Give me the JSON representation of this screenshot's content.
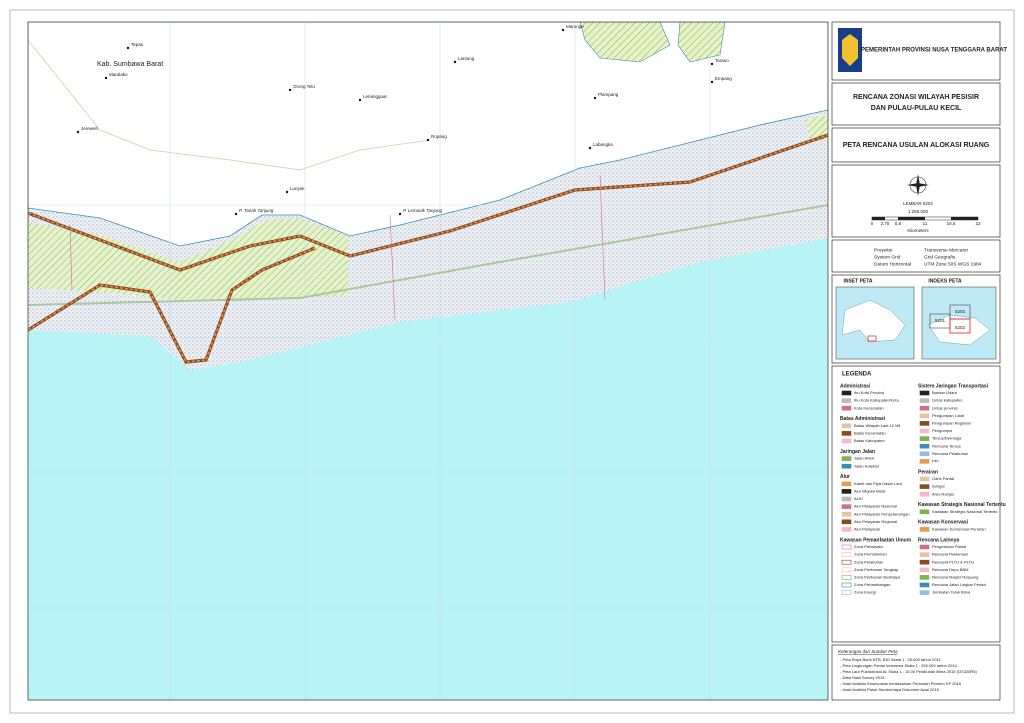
{
  "header": {
    "agency": "PEMERINTAH PROVINSI NUSA TENGGARA BARAT",
    "title_lines": [
      "RENCANA ZONASI WILAYAH PESISIR",
      "DAN PULAU-PULAU KECIL"
    ],
    "map_title": "PETA RENCANA USULAN ALOKASI RUANG"
  },
  "places": [
    "Tepas",
    "Kab. Sumbawa Barat",
    "Maralako",
    "Orong Telu",
    "Lenangguar",
    "Lantung",
    "Ropang",
    "Lunyuk",
    "Jereweh",
    "Maronge",
    "Plampang",
    "Labangka",
    "Empang",
    "Tarano",
    "P. Tanah Tanjung",
    "P. Lemanik Tanjung"
  ],
  "scale": {
    "sheet": "LEMBAR 5202",
    "ratio": "1:250.000",
    "ticks": [
      "0",
      "2,75",
      "5,5",
      "11",
      "16,5",
      "22"
    ],
    "unit": "Kilometers"
  },
  "projection": [
    [
      "Proyeksi",
      "Transverse Mercator"
    ],
    [
      "System Grid",
      "Grid Geografis"
    ],
    [
      "Datum Horizontal",
      "UTM Zone 50S WGS 1984"
    ]
  ],
  "inset": {
    "left": "INSET PETA",
    "right": "INDEKS PETA",
    "sheets": [
      "5203",
      "5201",
      "5202"
    ]
  },
  "legend": {
    "title": "LEGENDA",
    "columns": [
      [
        {
          "group": "Administrasi",
          "items": [
            "Ibu Kota Provinsi",
            "Ibu Kota Kabupaten/Kota",
            "Kota Kecamatan"
          ]
        },
        {
          "group": "Batas Administrasi",
          "items": [
            "Batas Wilayah Laut 12 Mil",
            "Batas Kecamatan",
            "Batas Kabupaten"
          ]
        },
        {
          "group": "Jaringan Jalan",
          "items": [
            "Jalan Arteri",
            "Jalan Kolektor"
          ]
        },
        {
          "group": "Alur",
          "items": [
            "Kabel dan Pipa Dasar Laut",
            "Alur Migrasi Biota",
            "ALKI",
            "Alur Pelayaran Nasional",
            "Alur Pelayaran Penyeberangan",
            "Alur Pelayaran Regional",
            "Alur Pelayaran"
          ]
        },
        {
          "group": "Kawasan Pemanfaatan Umum",
          "items": [
            "Zona Pariwisata",
            "Zona Permukiman",
            "Zona Pelabuhan",
            "Zona Perikanan Tangkap",
            "Zona Perikanan Budidaya",
            "Zona Pertambangan",
            "Zona Energi"
          ]
        }
      ],
      [
        {
          "group": "Sistem Jaringan Transportasi",
          "items": [
            "Bandar Udara",
            "Lintas kabupaten",
            "Lintas provinsi",
            "Pengumpan Lokal",
            "Pengumpan Regional",
            "Pengumpul",
            "Tersus/Dermaga",
            "Rencana Tersus",
            "Rencana Pelabuhan",
            "PPI"
          ]
        },
        {
          "group": "Perairan",
          "items": [
            "Garis Pantai",
            "Sungai",
            "Area Ranjau"
          ]
        },
        {
          "group": "Kawasan Strategis Nasional Tertentu",
          "items": [
            "Kawasan Strategis Nasional Tertentu"
          ]
        },
        {
          "group": "Kawasan Konservasi",
          "items": [
            "Kawasan Konservasi Perairan"
          ]
        },
        {
          "group": "Rencana Lainnya",
          "items": [
            "Pengeboran Pantai",
            "Rencana Reklamasi",
            "Rencana PLTU & PLTG",
            "Rencana Depo BBM",
            "Rencana Masjid Terapung",
            "Rencana Jalan Lingkar Pesisir",
            "Jembatan Teluk Bima"
          ]
        }
      ]
    ]
  },
  "notes": {
    "title": "Keterangan dan Sumber Peta",
    "items": [
      "- Peta Rupa Bumi NTB, BIG Skala 1 : 25.000  tahun 2011",
      "- Peta Lingkungan Pantai Indonesia Skala 1 : 250.000  tahun 2014",
      "- Peta Laut Pushidrosal AL Skala 1 : 15.00 Pelabuhan Bima 2015 (OS320R5)",
      "- Data Hasil Survey 2015",
      "- Hasil Analisis Kesesuaian berdasarkan Pedoman Permen KP 2016",
      "- Hasil Analisis Paket Sumberdaya Dokumen Awal 2015"
    ]
  }
}
